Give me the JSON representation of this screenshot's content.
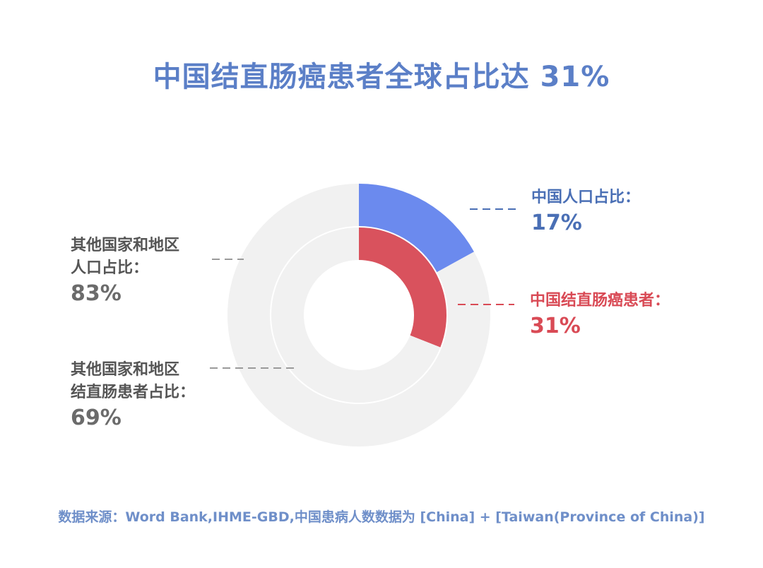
{
  "chart_data": {
    "type": "pie",
    "title": "中国结直肠癌患者全球占比达 31%",
    "rings": [
      {
        "name": "人口占比",
        "slices": [
          {
            "label": "中国人口占比：",
            "value": 17,
            "display": "17%",
            "color": "#6b8aee"
          },
          {
            "label_lines": [
              "其他国家和地区",
              "人口占比："
            ],
            "value": 83,
            "display": "83%",
            "color": "#f1f1f1"
          }
        ]
      },
      {
        "name": "结直肠癌患者占比",
        "slices": [
          {
            "label": "中国结直肠癌患者：",
            "value": 31,
            "display": "31%",
            "color": "#d9525d"
          },
          {
            "label_lines": [
              "其他国家和地区",
              "结直肠患者占比："
            ],
            "value": 69,
            "display": "69%",
            "color": "#f1f1f1"
          }
        ]
      }
    ],
    "source": "数据来源：Word Bank,IHME-GBD,中国患病人数数据为 [China] + [Taiwan(Province of China)]"
  }
}
